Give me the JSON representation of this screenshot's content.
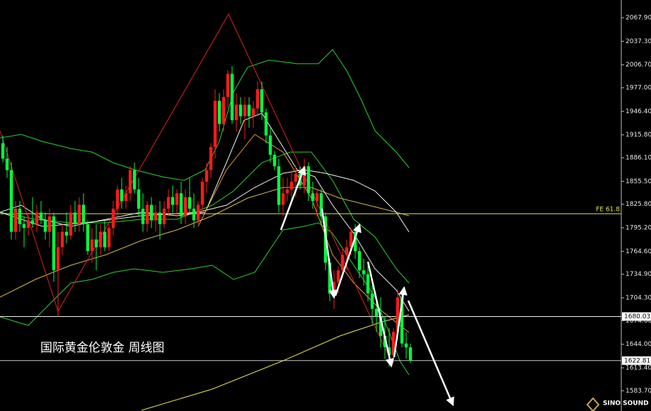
{
  "chart_data": {
    "type": "candlestick",
    "title": "国际黄金伦敦金 周线图",
    "logo": "SINO SOUND",
    "up_color": "#ff1a1a",
    "down_color": "#00ff40",
    "ylim": [
      1557.4,
      2090.86
    ],
    "yticks": [
      {
        "value": 2067.9,
        "label": "2067.90"
      },
      {
        "value": 2037.3,
        "label": "2037.30"
      },
      {
        "value": 2006.7,
        "label": "2006.70"
      },
      {
        "value": 1977,
        "label": "1977.00"
      },
      {
        "value": 1946.4,
        "label": "1946.40"
      },
      {
        "value": 1915.8,
        "label": "1915.80"
      },
      {
        "value": 1886.1,
        "label": "1886.10"
      },
      {
        "value": 1855.5,
        "label": "1855.50"
      },
      {
        "value": 1825.8,
        "label": "1825.80"
      },
      {
        "value": 1795.2,
        "label": "1795.20"
      },
      {
        "value": 1764.6,
        "label": "1764.60"
      },
      {
        "value": 1734.9,
        "label": "1734.90"
      },
      {
        "value": 1704.3,
        "label": "1704.30"
      },
      {
        "value": 1674.6,
        "label": "1674.60"
      },
      {
        "value": 1644,
        "label": "1644.00"
      },
      {
        "value": 1613.4,
        "label": "1613.40"
      },
      {
        "value": 1583.7,
        "label": "1583.70"
      }
    ],
    "levels": [
      {
        "value": 1813.5,
        "label": "FE 61.8",
        "color": "#e6e64c"
      },
      {
        "value": 1680.03,
        "label": "1680.03",
        "color": "#f0f0f0"
      },
      {
        "value": 1622.81,
        "label": "1622.81",
        "color": "#c8c8c8"
      }
    ],
    "open": [
      1905,
      1885,
      1870,
      1790,
      1820,
      1800,
      1795,
      1805,
      1800,
      1815,
      1805,
      1790,
      1810,
      1740,
      1770,
      1790,
      1785,
      1815,
      1800,
      1825,
      1800,
      1765,
      1780,
      1770,
      1790,
      1770,
      1795,
      1820,
      1845,
      1830,
      1840,
      1870,
      1845,
      1820,
      1800,
      1825,
      1805,
      1815,
      1800,
      1820,
      1835,
      1825,
      1840,
      1810,
      1835,
      1820,
      1805,
      1825,
      1855,
      1870,
      1900,
      1960,
      1930,
      1965,
      1995,
      1935,
      1955,
      1940,
      1955,
      1940,
      1950,
      1975,
      1945,
      1915,
      1890,
      1875,
      1825,
      1840,
      1845,
      1855,
      1865,
      1850,
      1875,
      1840,
      1830,
      1840,
      1810,
      1750,
      1710,
      1725,
      1740,
      1760,
      1770,
      1790,
      1765,
      1740,
      1735,
      1710,
      1690,
      1680,
      1655,
      1640,
      1630,
      1660,
      1705,
      1645,
      1640
    ],
    "high": [
      1915,
      1900,
      1880,
      1830,
      1830,
      1810,
      1815,
      1835,
      1825,
      1830,
      1815,
      1820,
      1815,
      1790,
      1800,
      1815,
      1825,
      1830,
      1835,
      1840,
      1805,
      1795,
      1800,
      1800,
      1805,
      1800,
      1830,
      1850,
      1860,
      1850,
      1875,
      1880,
      1860,
      1840,
      1830,
      1835,
      1825,
      1830,
      1830,
      1845,
      1850,
      1845,
      1855,
      1845,
      1860,
      1840,
      1830,
      1860,
      1880,
      1905,
      1975,
      1970,
      1975,
      2000,
      2005,
      1970,
      1965,
      1965,
      1965,
      1960,
      1985,
      1985,
      1950,
      1925,
      1895,
      1885,
      1860,
      1860,
      1870,
      1875,
      1875,
      1885,
      1880,
      1855,
      1845,
      1845,
      1815,
      1755,
      1740,
      1745,
      1770,
      1780,
      1795,
      1800,
      1770,
      1755,
      1750,
      1720,
      1700,
      1705,
      1680,
      1665,
      1665,
      1715,
      1710,
      1660,
      1645
    ],
    "low": [
      1880,
      1860,
      1780,
      1780,
      1790,
      1770,
      1785,
      1795,
      1790,
      1800,
      1780,
      1770,
      1725,
      1680,
      1760,
      1775,
      1780,
      1790,
      1790,
      1790,
      1760,
      1750,
      1740,
      1760,
      1765,
      1765,
      1785,
      1810,
      1820,
      1820,
      1830,
      1840,
      1810,
      1790,
      1790,
      1795,
      1790,
      1780,
      1795,
      1810,
      1815,
      1810,
      1800,
      1800,
      1815,
      1795,
      1800,
      1815,
      1840,
      1860,
      1885,
      1920,
      1920,
      1950,
      1930,
      1920,
      1930,
      1910,
      1925,
      1925,
      1940,
      1935,
      1905,
      1880,
      1870,
      1815,
      1810,
      1830,
      1825,
      1835,
      1845,
      1840,
      1830,
      1820,
      1810,
      1800,
      1740,
      1700,
      1690,
      1710,
      1730,
      1740,
      1760,
      1755,
      1730,
      1720,
      1700,
      1670,
      1660,
      1640,
      1625,
      1615,
      1620,
      1650,
      1640,
      1625,
      1620
    ],
    "close": [
      1885,
      1870,
      1790,
      1820,
      1800,
      1795,
      1805,
      1800,
      1815,
      1805,
      1790,
      1810,
      1740,
      1770,
      1790,
      1785,
      1815,
      1800,
      1825,
      1800,
      1765,
      1780,
      1770,
      1790,
      1770,
      1795,
      1820,
      1845,
      1830,
      1840,
      1870,
      1845,
      1820,
      1800,
      1825,
      1805,
      1815,
      1800,
      1820,
      1835,
      1825,
      1840,
      1810,
      1835,
      1820,
      1805,
      1825,
      1855,
      1870,
      1900,
      1960,
      1930,
      1965,
      1995,
      1935,
      1955,
      1940,
      1955,
      1940,
      1950,
      1975,
      1945,
      1915,
      1890,
      1875,
      1825,
      1840,
      1845,
      1855,
      1865,
      1850,
      1875,
      1840,
      1830,
      1840,
      1810,
      1750,
      1710,
      1725,
      1740,
      1760,
      1770,
      1790,
      1765,
      1740,
      1735,
      1710,
      1690,
      1680,
      1655,
      1640,
      1630,
      1660,
      1705,
      1645,
      1640,
      1622.81
    ]
  }
}
